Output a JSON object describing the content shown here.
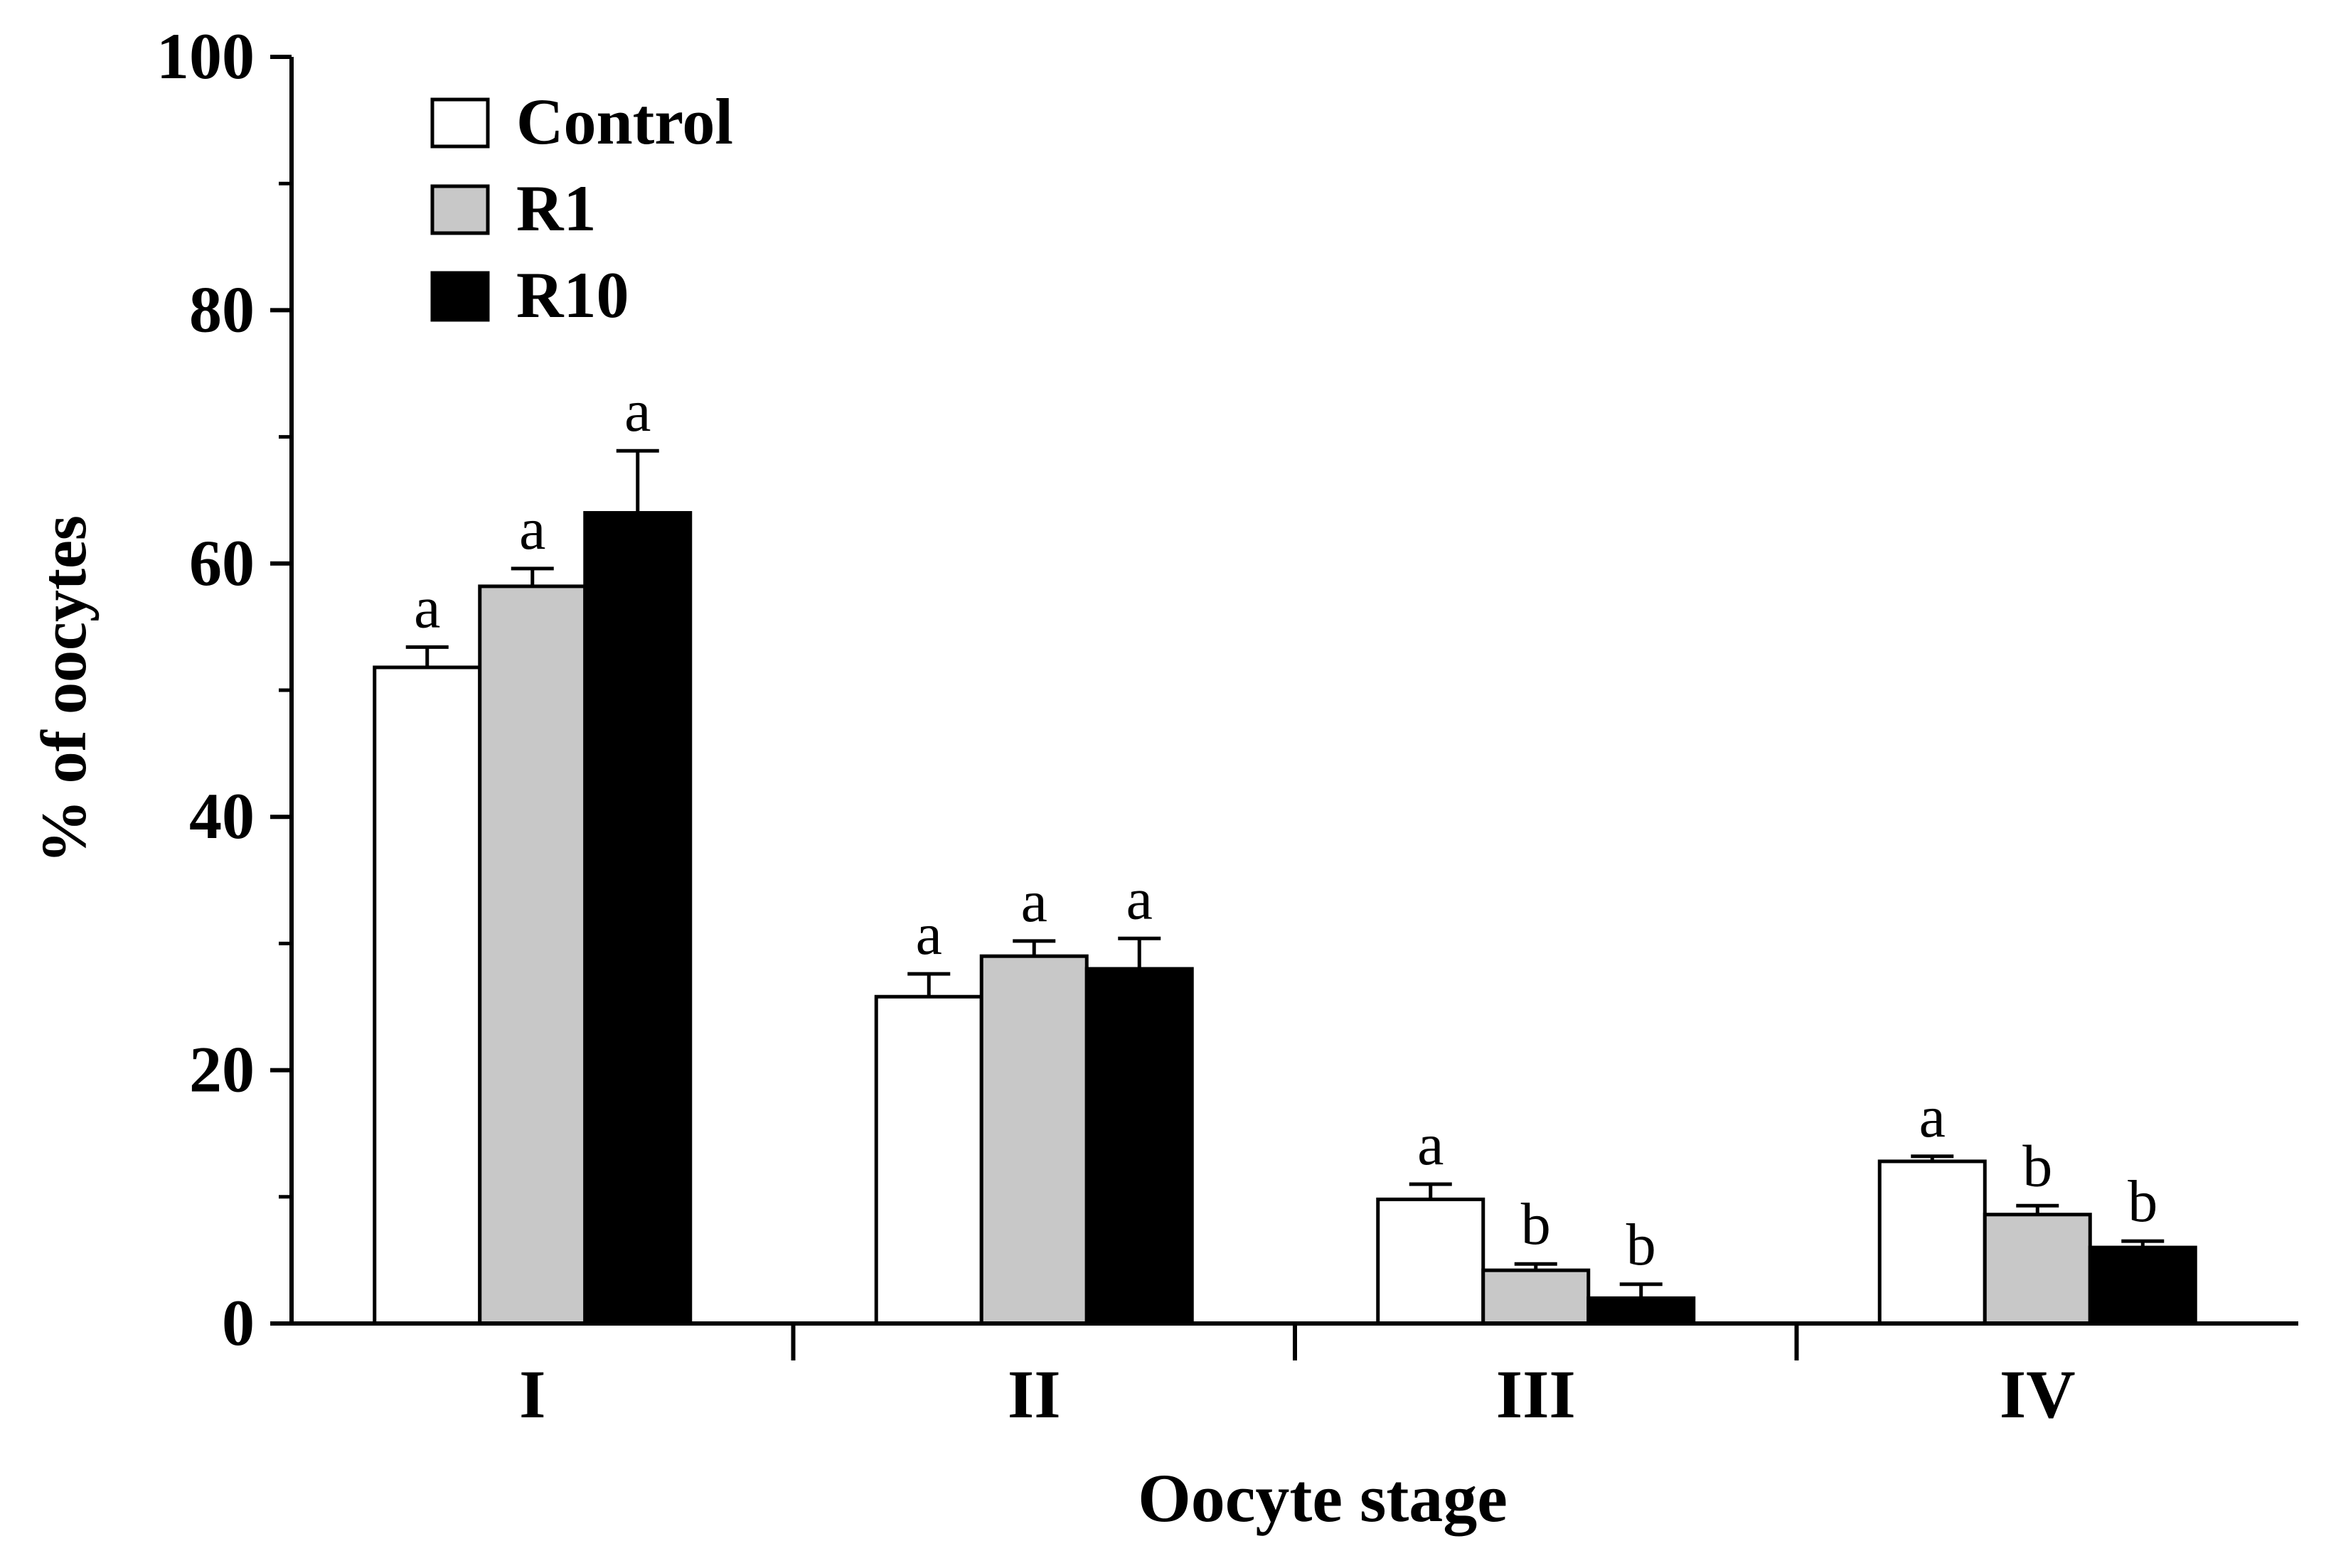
{
  "chart_data": {
    "type": "bar",
    "title": "",
    "xlabel": "Oocyte stage",
    "ylabel": "% of oocytes",
    "ylim": [
      0,
      100
    ],
    "yticks": [
      "0",
      "20",
      "40",
      "60",
      "80",
      "100"
    ],
    "categories": [
      "I",
      "II",
      "III",
      "IV"
    ],
    "series": [
      {
        "name": "Control",
        "color": "#ffffff",
        "values": [
          51.8,
          25.8,
          9.8,
          12.8
        ],
        "errors": [
          1.6,
          1.8,
          1.2,
          0.4
        ],
        "letters": [
          "a",
          "a",
          "a",
          "a"
        ]
      },
      {
        "name": "R1",
        "color": "#c8c8c8",
        "values": [
          58.2,
          29.0,
          4.2,
          8.6
        ],
        "errors": [
          1.4,
          1.2,
          0.5,
          0.7
        ],
        "letters": [
          "a",
          "a",
          "b",
          "b"
        ]
      },
      {
        "name": "R10",
        "color": "#000000",
        "values": [
          64.0,
          28.0,
          2.0,
          6.0
        ],
        "errors": [
          4.9,
          2.4,
          1.1,
          0.5
        ],
        "letters": [
          "a",
          "a",
          "b",
          "b"
        ]
      }
    ],
    "legend_position": "top-left",
    "grid": false
  }
}
